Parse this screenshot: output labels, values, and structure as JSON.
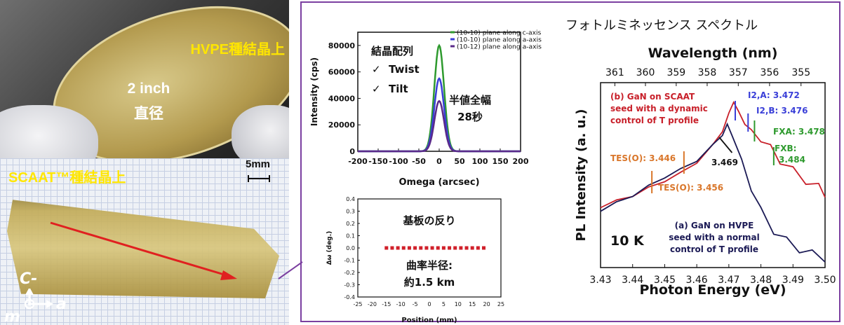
{
  "photos": {
    "top_label": "HVPE種結晶上",
    "wafer_size": "2 inch",
    "wafer_size_unit": "直径",
    "bottom_label": "SCAAT™種結晶上",
    "scale_bar": "5mm",
    "axis_c": "C-",
    "axis_m": "m",
    "axis_a": "a"
  },
  "panel_title": "フォトルミネッセンス スペクトル",
  "colors": {
    "frame": "#7b3fa0",
    "arrow": "#e02020",
    "green": "#2e9a2e",
    "blue": "#3a3fd8",
    "purple": "#5a2a8a",
    "red_line": "#c8202a",
    "navy_line": "#1b1a55",
    "orange_marker": "#d9762a"
  },
  "chart_data": [
    {
      "type": "line",
      "title": "",
      "xlabel": "Omega (arcsec)",
      "ylabel": "Intensity (cps)",
      "xlim": [
        -200,
        200
      ],
      "ylim": [
        0,
        90000
      ],
      "x_ticks": [
        "-200",
        "-150",
        "-100",
        "-50",
        "0",
        "50",
        "100",
        "150",
        "200"
      ],
      "y_ticks": [
        "0",
        "20000",
        "40000",
        "60000",
        "80000"
      ],
      "inset_label": "結晶配列",
      "checks": [
        "Twist",
        "Tilt"
      ],
      "check_mark": "✓",
      "annotation_line1": "半値全幅",
      "annotation_line2": "28秒",
      "series": [
        {
          "name": "(10-10) plane along c-axis",
          "color": "#2e9a2e",
          "peak": 80000,
          "center": 0,
          "fwhm": 28
        },
        {
          "name": "(10-10) plane along a-axis",
          "color": "#3a3fd8",
          "peak": 55000,
          "center": 0,
          "fwhm": 28
        },
        {
          "name": "(10-12) plane along a-axis",
          "color": "#5a2a8a",
          "peak": 38000,
          "center": 0,
          "fwhm": 28
        }
      ]
    },
    {
      "type": "scatter",
      "xlabel": "Position (mm)",
      "ylabel": "Δω (deg.)",
      "xlim": [
        -25,
        25
      ],
      "ylim": [
        -0.4,
        0.4
      ],
      "x_ticks": [
        "-25",
        "-20",
        "-15",
        "-10",
        "-5",
        "0",
        "5",
        "10",
        "15",
        "20",
        "25"
      ],
      "y_ticks": [
        "0.4",
        "0.3",
        "0.2",
        "0.1",
        "0.0",
        "-0.1",
        "-0.2",
        "-0.3",
        "-0.4"
      ],
      "title_text": "基板の反り",
      "radius_line1": "曲率半径:",
      "radius_line2": "約1.5 km",
      "x": [
        -15,
        -13,
        -11,
        -9,
        -7,
        -5,
        -3,
        -1,
        1,
        3,
        5,
        7,
        9,
        11,
        13,
        15,
        17,
        19
      ],
      "y": [
        0,
        0,
        0,
        0,
        0,
        0,
        0,
        0,
        0,
        0,
        0,
        0,
        0,
        0,
        0,
        0,
        0,
        0
      ]
    },
    {
      "type": "line",
      "xlabel": "Photon Energy (eV)",
      "ylabel": "PL Intensity (a. u.)",
      "top_axis_label": "Wavelength (nm)",
      "xlim": [
        3.43,
        3.5
      ],
      "x_ticks": [
        "3.43",
        "3.44",
        "3.45",
        "3.46",
        "3.47",
        "3.48",
        "3.49",
        "3.50"
      ],
      "top_ticks": [
        "361",
        "360",
        "359",
        "358",
        "357",
        "356",
        "355"
      ],
      "temperature": "10 K",
      "series": [
        {
          "name": "(b) GaN on SCAAT seed with a dynamic control of T profile",
          "color": "#c8202a",
          "x": [
            3.43,
            3.435,
            3.44,
            3.445,
            3.45,
            3.455,
            3.46,
            3.465,
            3.468,
            3.47,
            3.4715,
            3.473,
            3.475,
            3.477,
            3.48,
            3.483,
            3.486,
            3.49,
            3.494,
            3.498,
            3.5
          ],
          "y": [
            0.33,
            0.36,
            0.39,
            0.43,
            0.47,
            0.51,
            0.57,
            0.66,
            0.74,
            0.83,
            0.9,
            0.84,
            0.78,
            0.74,
            0.7,
            0.64,
            0.58,
            0.52,
            0.47,
            0.43,
            0.4
          ]
        },
        {
          "name": "(a) GaN on HVPE seed with a normal control of T profile",
          "color": "#1b1a55",
          "x": [
            3.43,
            3.435,
            3.44,
            3.445,
            3.45,
            3.455,
            3.46,
            3.465,
            3.468,
            3.4695,
            3.471,
            3.474,
            3.477,
            3.48,
            3.484,
            3.488,
            3.492,
            3.496,
            3.5
          ],
          "y": [
            0.31,
            0.35,
            0.39,
            0.44,
            0.49,
            0.53,
            0.58,
            0.66,
            0.72,
            0.77,
            0.72,
            0.58,
            0.42,
            0.3,
            0.2,
            0.14,
            0.1,
            0.07,
            0.05
          ]
        }
      ],
      "annotations": {
        "b_label_lines": [
          "(b) GaN on SCAAT",
          "seed with a dynamic",
          "control of T profile"
        ],
        "a_label_lines": [
          "(a) GaN on HVPE",
          "seed with a normal",
          "control of T profile"
        ],
        "i2a": "I2,A: 3.472",
        "i2b": "I2,B: 3.476",
        "fxa": "FXA: 3.478",
        "fxb_1": "FXB:",
        "fxb_2": "3.484",
        "tes1": "TES(O): 3.446",
        "tes2": "TES(O): 3.456",
        "peak": "3.469"
      }
    }
  ]
}
